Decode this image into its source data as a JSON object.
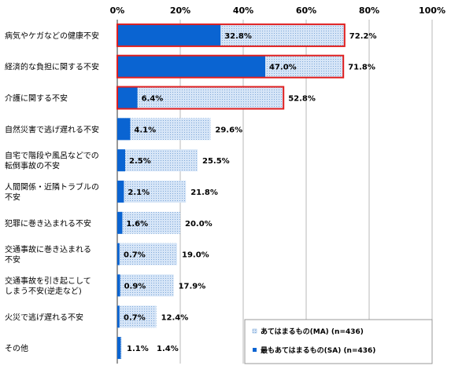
{
  "chart_data": {
    "type": "bar",
    "orientation": "horizontal",
    "xlim": [
      0,
      100
    ],
    "x_ticks": [
      "0%",
      "20%",
      "40%",
      "60%",
      "80%",
      "100%"
    ],
    "grid": "vertical",
    "legend_position": "bottom-right",
    "categories": [
      [
        "病気やケガなどの健康不安"
      ],
      [
        "経済的な負担に関する不安"
      ],
      [
        "介護に関する不安"
      ],
      [
        "自然災害で逃げ遅れる不安"
      ],
      [
        "自宅で階段や風呂などでの",
        "転倒事故の不安"
      ],
      [
        "人間関係・近隣トラブルの",
        "不安"
      ],
      [
        "犯罪に巻き込まれる不安"
      ],
      [
        "交通事故に巻き込まれる",
        "不安"
      ],
      [
        "交通事故を引き起こして",
        "しまう不安(逆走など)"
      ],
      [
        "火災で逃げ遅れる不安"
      ],
      [
        "その他"
      ]
    ],
    "series": [
      {
        "name": "あてはまるもの(MA) (n=436)",
        "values": [
          72.2,
          71.8,
          52.8,
          29.6,
          25.5,
          21.8,
          20.0,
          19.0,
          17.9,
          12.4,
          1.4
        ],
        "labels": [
          "72.2%",
          "71.8%",
          "52.8%",
          "29.6%",
          "25.5%",
          "21.8%",
          "20.0%",
          "19.0%",
          "17.9%",
          "12.4%",
          "1.4%"
        ],
        "color": "#cfe0f5"
      },
      {
        "name": "最もあてはまるもの(SA) (n=436)",
        "values": [
          32.8,
          47.0,
          6.4,
          4.1,
          2.5,
          2.1,
          1.6,
          0.7,
          0.9,
          0.7,
          1.1
        ],
        "labels": [
          "32.8%",
          "47.0%",
          "6.4%",
          "4.1%",
          "2.5%",
          "2.1%",
          "1.6%",
          "0.7%",
          "0.9%",
          "0.7%",
          "1.1%"
        ],
        "color": "#0a64d2"
      }
    ],
    "highlighted_categories": [
      0,
      1,
      2
    ],
    "highlight_color": "#e02020"
  }
}
